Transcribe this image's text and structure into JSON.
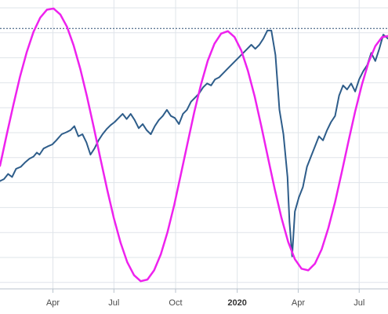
{
  "chart_data": {
    "type": "line",
    "title": "",
    "xlabel": "",
    "ylabel": "",
    "grid": true,
    "legend": "none",
    "x_range": [
      "2019-01-12",
      "2020-08-13"
    ],
    "x_ticks": [
      {
        "date": "2019-04-01",
        "label": "Apr",
        "major": false
      },
      {
        "date": "2019-07-01",
        "label": "Jul",
        "major": false
      },
      {
        "date": "2019-10-01",
        "label": "Oct",
        "major": false
      },
      {
        "date": "2020-01-01",
        "label": "2020",
        "major": true
      },
      {
        "date": "2020-04-01",
        "label": "Apr",
        "major": false
      },
      {
        "date": "2020-07-01",
        "label": "Jul",
        "major": false
      }
    ],
    "reference_line": {
      "value": 3380,
      "color": "#2b4f73",
      "style": "dotted"
    },
    "series": [
      {
        "color": "#2e5d8a",
        "x": [
          "2019-01-12",
          "2019-01-18",
          "2019-01-24",
          "2019-01-30",
          "2019-02-05",
          "2019-02-12",
          "2019-02-18",
          "2019-02-25",
          "2019-03-03",
          "2019-03-08",
          "2019-03-12",
          "2019-03-18",
          "2019-03-24",
          "2019-03-31",
          "2019-04-06",
          "2019-04-14",
          "2019-04-21",
          "2019-04-27",
          "2019-05-03",
          "2019-05-09",
          "2019-05-15",
          "2019-05-21",
          "2019-05-27",
          "2019-06-02",
          "2019-06-08",
          "2019-06-14",
          "2019-06-20",
          "2019-06-26",
          "2019-07-02",
          "2019-07-08",
          "2019-07-14",
          "2019-07-20",
          "2019-07-26",
          "2019-08-01",
          "2019-08-07",
          "2019-08-13",
          "2019-08-19",
          "2019-08-25",
          "2019-08-31",
          "2019-09-06",
          "2019-09-12",
          "2019-09-18",
          "2019-09-24",
          "2019-09-30",
          "2019-10-06",
          "2019-10-12",
          "2019-10-18",
          "2019-10-24",
          "2019-10-30",
          "2019-11-05",
          "2019-11-11",
          "2019-11-17",
          "2019-11-23",
          "2019-11-29",
          "2019-12-05",
          "2019-12-11",
          "2019-12-17",
          "2019-12-23",
          "2019-12-29",
          "2020-01-04",
          "2020-01-10",
          "2020-01-16",
          "2020-01-22",
          "2020-01-28",
          "2020-02-03",
          "2020-02-09",
          "2020-02-15",
          "2020-02-21",
          "2020-02-27",
          "2020-03-04",
          "2020-03-10",
          "2020-03-16",
          "2020-03-19",
          "2020-03-23",
          "2020-03-27",
          "2020-04-02",
          "2020-04-08",
          "2020-04-14",
          "2020-04-20",
          "2020-04-26",
          "2020-05-02",
          "2020-05-08",
          "2020-05-14",
          "2020-05-20",
          "2020-05-26",
          "2020-06-01",
          "2020-06-07",
          "2020-06-13",
          "2020-06-19",
          "2020-06-25",
          "2020-07-01",
          "2020-07-07",
          "2020-07-13",
          "2020-07-19",
          "2020-07-25",
          "2020-07-31",
          "2020-08-06",
          "2020-08-13"
        ],
        "values": [
          2630,
          2640,
          2665,
          2650,
          2690,
          2700,
          2720,
          2740,
          2750,
          2770,
          2760,
          2790,
          2800,
          2810,
          2830,
          2860,
          2870,
          2880,
          2900,
          2850,
          2860,
          2820,
          2760,
          2790,
          2830,
          2860,
          2885,
          2905,
          2920,
          2940,
          2960,
          2935,
          2960,
          2930,
          2890,
          2910,
          2880,
          2860,
          2900,
          2930,
          2950,
          2980,
          2950,
          2940,
          2910,
          2960,
          2980,
          3020,
          3040,
          3060,
          3090,
          3110,
          3100,
          3130,
          3140,
          3160,
          3180,
          3200,
          3220,
          3240,
          3260,
          3280,
          3300,
          3280,
          3300,
          3330,
          3370,
          3370,
          3250,
          2980,
          2860,
          2650,
          2430,
          2260,
          2480,
          2550,
          2600,
          2700,
          2750,
          2800,
          2850,
          2830,
          2880,
          2920,
          2950,
          3050,
          3100,
          3080,
          3110,
          3070,
          3130,
          3170,
          3200,
          3260,
          3220,
          3280,
          3350,
          3330
        ]
      },
      {
        "color": "#ee22ee",
        "x": [
          "2019-01-12",
          "2019-01-22",
          "2019-02-01",
          "2019-02-11",
          "2019-02-21",
          "2019-03-03",
          "2019-03-13",
          "2019-03-23",
          "2019-04-02",
          "2019-04-12",
          "2019-04-22",
          "2019-05-02",
          "2019-05-12",
          "2019-05-22",
          "2019-06-01",
          "2019-06-11",
          "2019-06-21",
          "2019-07-01",
          "2019-07-11",
          "2019-07-21",
          "2019-07-31",
          "2019-08-10",
          "2019-08-20",
          "2019-08-30",
          "2019-09-09",
          "2019-09-19",
          "2019-09-29",
          "2019-10-09",
          "2019-10-19",
          "2019-10-29",
          "2019-11-08",
          "2019-11-18",
          "2019-11-28",
          "2019-12-08",
          "2019-12-18",
          "2019-12-28",
          "2020-01-07",
          "2020-01-17",
          "2020-01-27",
          "2020-02-06",
          "2020-02-16",
          "2020-02-26",
          "2020-03-07",
          "2020-03-17",
          "2020-03-27",
          "2020-04-06",
          "2020-04-16",
          "2020-04-26",
          "2020-05-06",
          "2020-05-16",
          "2020-05-26",
          "2020-06-05",
          "2020-06-15",
          "2020-06-25",
          "2020-07-05",
          "2020-07-15",
          "2020-07-25",
          "2020-08-04",
          "2020-08-13"
        ],
        "values": [
          2705,
          2857,
          3005,
          3144,
          3265,
          3363,
          3433,
          3472,
          3478,
          3449,
          3388,
          3296,
          3179,
          3043,
          2893,
          2739,
          2587,
          2447,
          2326,
          2231,
          2167,
          2138,
          2146,
          2191,
          2270,
          2379,
          2513,
          2664,
          2819,
          2970,
          3106,
          3221,
          3305,
          3355,
          3367,
          3338,
          3272,
          3172,
          3046,
          2899,
          2743,
          2590,
          2449,
          2331,
          2246,
          2199,
          2191,
          2224,
          2295,
          2399,
          2527,
          2673,
          2826,
          2972,
          3104,
          3214,
          3293,
          3337,
          3343
        ]
      }
    ]
  }
}
